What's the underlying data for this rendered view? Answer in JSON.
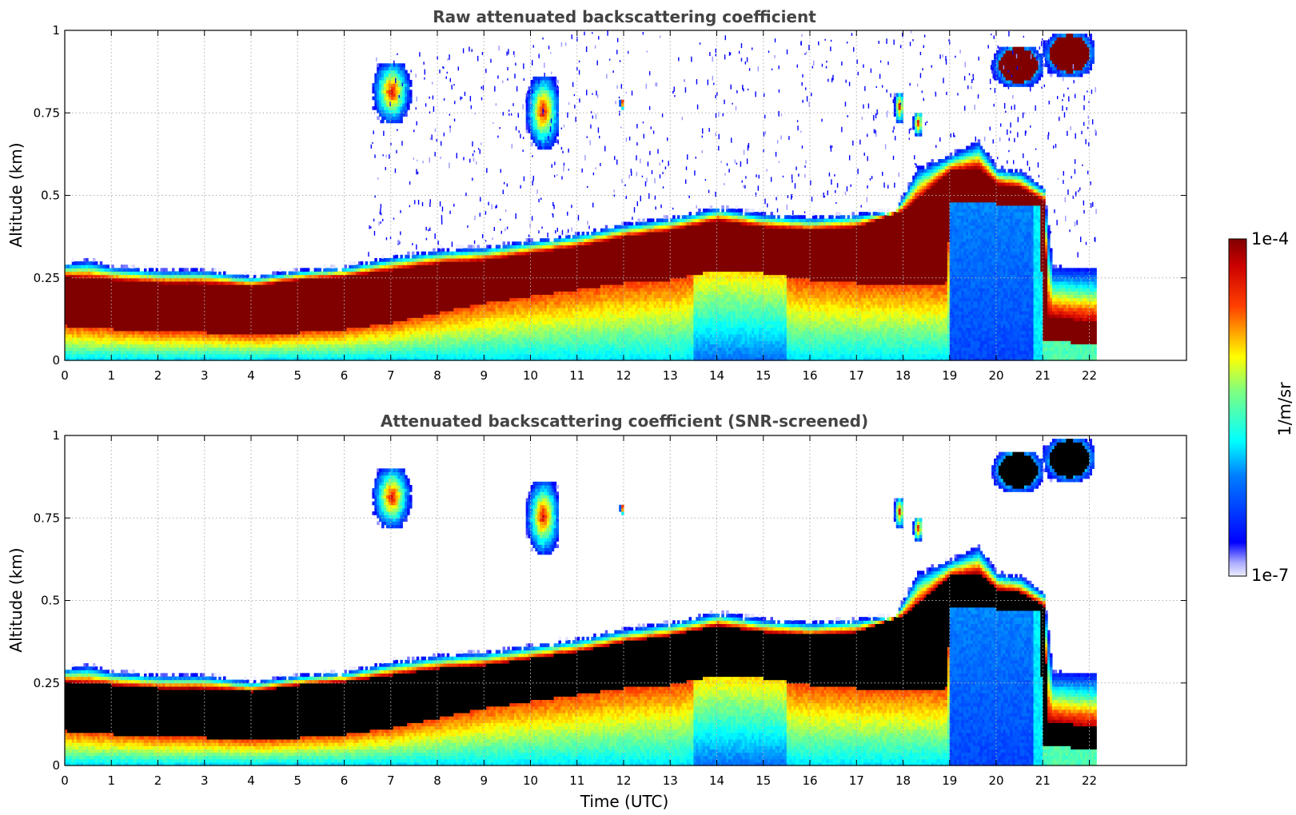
{
  "chart_data": [
    {
      "type": "heatmap",
      "title": "Raw attenuated backscattering coefficient",
      "xlabel": "",
      "ylabel": "Altitude (km)",
      "xlim": [
        0,
        24
      ],
      "ylim": [
        0,
        1
      ],
      "xticks": [
        "0",
        "1",
        "2",
        "3",
        "4",
        "5",
        "6",
        "7",
        "8",
        "9",
        "10",
        "11",
        "12",
        "13",
        "14",
        "15",
        "16",
        "17",
        "18",
        "19",
        "20",
        "21",
        "22"
      ],
      "yticks": [
        "0",
        "0.25",
        "0.5",
        "0.75",
        "1"
      ],
      "grid": true,
      "data_end_hour": 22.15,
      "saturation_color": "#800000"
    },
    {
      "type": "heatmap",
      "title": "Attenuated backscattering coefficient (SNR-screened)",
      "xlabel": "Time (UTC)",
      "ylabel": "Altitude (km)",
      "xlim": [
        0,
        24
      ],
      "ylim": [
        0,
        1
      ],
      "xticks": [
        "0",
        "1",
        "2",
        "3",
        "4",
        "5",
        "6",
        "7",
        "8",
        "9",
        "10",
        "11",
        "12",
        "13",
        "14",
        "15",
        "16",
        "17",
        "18",
        "19",
        "20",
        "21",
        "22"
      ],
      "yticks": [
        "0",
        "0.25",
        "0.5",
        "0.75",
        "1"
      ],
      "grid": true,
      "data_end_hour": 22.15,
      "saturation_color": "#000000"
    }
  ],
  "colorbar": {
    "max_label": "1e-4",
    "min_label": "1e-7",
    "units": "1/m/sr",
    "colormap": "jet"
  }
}
